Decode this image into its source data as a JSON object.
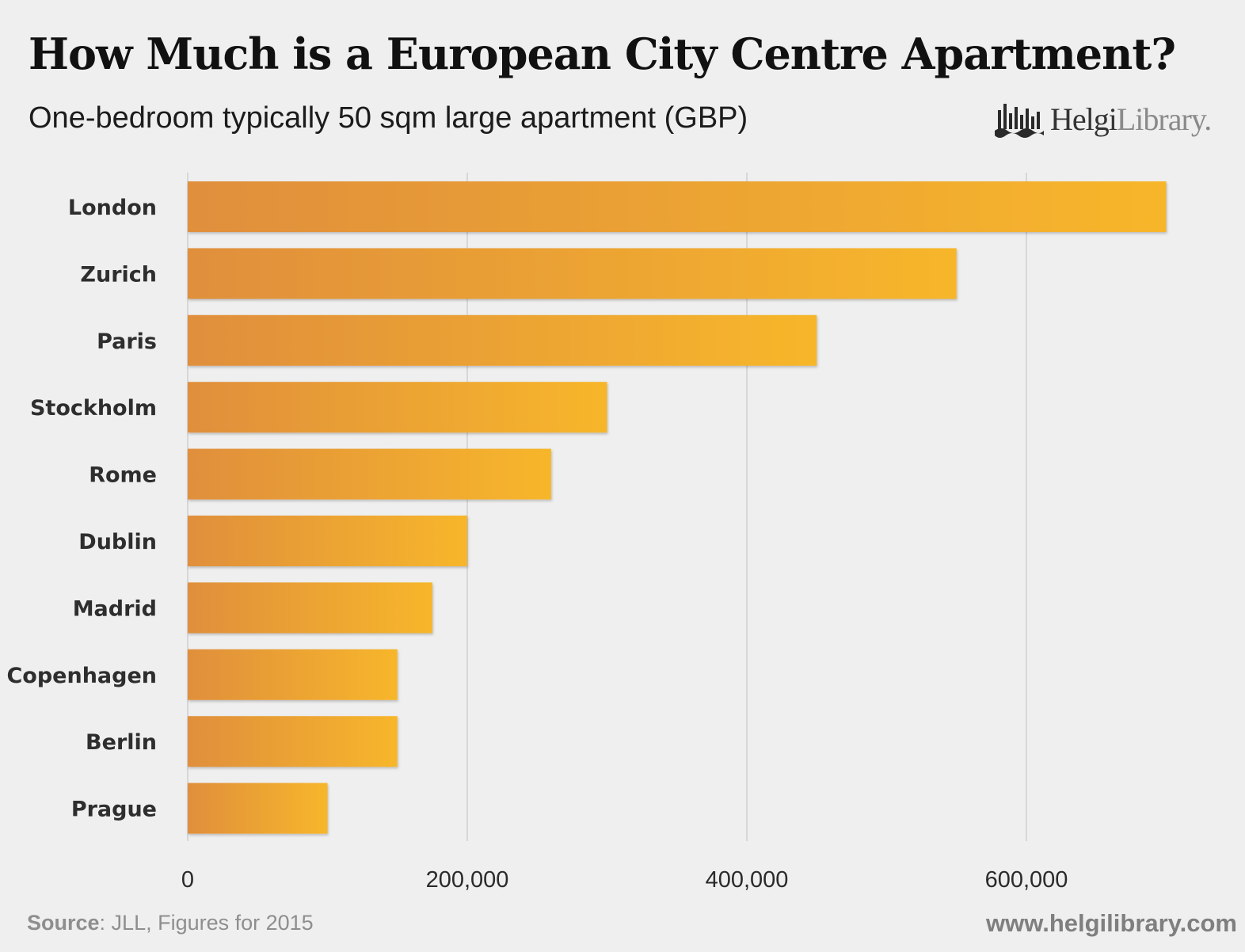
{
  "header": {
    "title": "How Much is a European City Centre Apartment?",
    "subtitle": "One-bedroom typically 50 sqm large apartment (GBP)"
  },
  "logo": {
    "name_bold": "Helgi",
    "name_light": "Library."
  },
  "footer": {
    "source_label": "Source",
    "source_text": ": JLL, Figures for 2015",
    "url": "www.helgilibrary.com"
  },
  "colors": {
    "bar_start": "#e08f3c",
    "bar_end": "#f7b62b",
    "gridline": "#cfcfcf"
  },
  "chart_data": {
    "type": "bar",
    "orientation": "horizontal",
    "categories": [
      "London",
      "Zurich",
      "Paris",
      "Stockholm",
      "Rome",
      "Dublin",
      "Madrid",
      "Copenhagen",
      "Berlin",
      "Prague"
    ],
    "values": [
      700000,
      550000,
      450000,
      300000,
      260000,
      200000,
      175000,
      150000,
      150000,
      100000
    ],
    "xlim": [
      0,
      700000
    ],
    "ticks": [
      0,
      200000,
      400000,
      600000
    ],
    "tick_labels": [
      "0",
      "200,000",
      "400,000",
      "600,000"
    ],
    "title": "How Much is a European City Centre Apartment?",
    "subtitle": "One-bedroom typically 50 sqm large apartment (GBP)",
    "grid": true,
    "legend": "none"
  }
}
